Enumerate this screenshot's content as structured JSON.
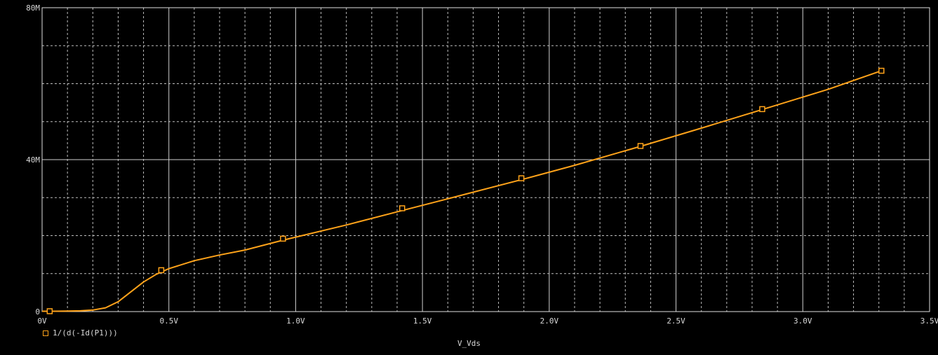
{
  "chart_data": {
    "type": "line",
    "title": "",
    "xlabel": "V_Vds",
    "ylabel": "",
    "xlim": [
      0,
      3.5
    ],
    "ylim": [
      0,
      80
    ],
    "x_ticks": [
      0,
      0.5,
      1.0,
      1.5,
      2.0,
      2.5,
      3.0,
      3.5
    ],
    "x_tick_labels": [
      "0V",
      "0.5V",
      "1.0V",
      "1.5V",
      "2.0V",
      "2.5V",
      "3.0V",
      "3.5V"
    ],
    "y_ticks": [
      0,
      40,
      80
    ],
    "y_tick_labels": [
      "0",
      "40M",
      "80M"
    ],
    "grid": true,
    "legend_position": "bottom-left",
    "series": [
      {
        "name": "1/(d(-Id(P1)))",
        "color": "#ffa31a",
        "marker": "square",
        "x": [
          0.0,
          0.05,
          0.1,
          0.15,
          0.2,
          0.25,
          0.3,
          0.35,
          0.4,
          0.45,
          0.5,
          0.6,
          0.7,
          0.8,
          0.95,
          1.2,
          1.42,
          1.6,
          1.9,
          2.1,
          2.36,
          2.6,
          2.84,
          3.1,
          3.31
        ],
        "y": [
          0.1,
          0.1,
          0.15,
          0.2,
          0.4,
          1.0,
          2.6,
          5.2,
          7.8,
          9.8,
          11.3,
          13.4,
          14.9,
          16.2,
          18.8,
          22.8,
          26.6,
          29.7,
          34.9,
          38.5,
          43.5,
          48.3,
          53.2,
          58.5,
          63.4
        ],
        "marker_x": [
          0.03,
          0.47,
          0.95,
          1.42,
          1.89,
          2.36,
          2.84,
          3.31
        ],
        "marker_y": [
          0.1,
          10.9,
          19.2,
          27.2,
          35.1,
          43.6,
          53.3,
          63.4
        ]
      }
    ]
  }
}
